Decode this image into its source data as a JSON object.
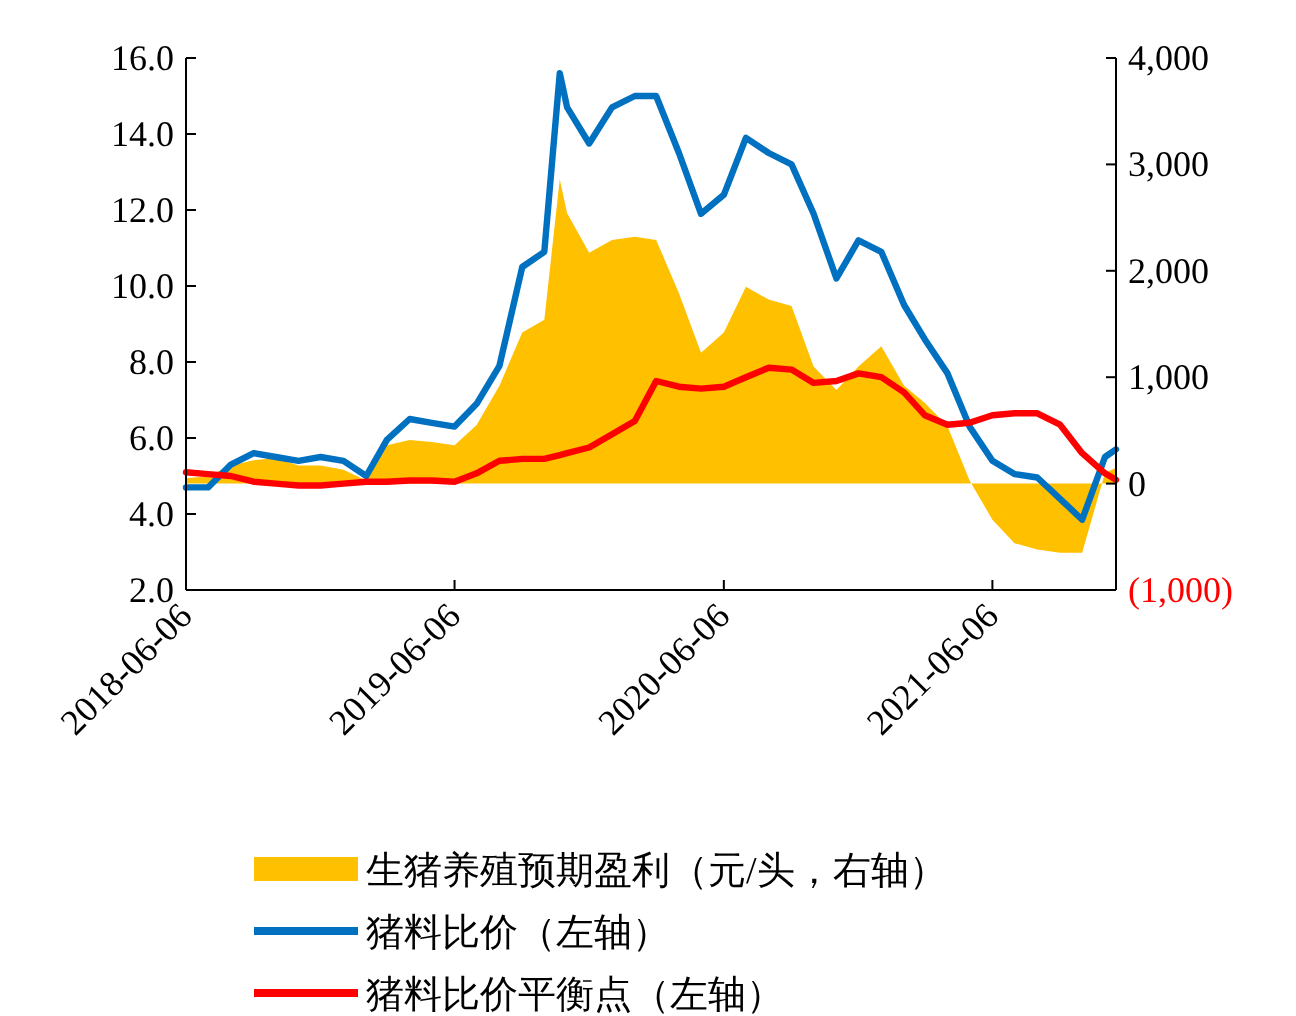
{
  "chart_data": {
    "type": "line",
    "x": [
      "2018-06-06",
      "2018-07-06",
      "2018-08-06",
      "2018-09-06",
      "2018-10-06",
      "2018-11-06",
      "2018-12-06",
      "2019-01-06",
      "2019-02-06",
      "2019-03-06",
      "2019-04-06",
      "2019-05-06",
      "2019-06-06",
      "2019-07-06",
      "2019-08-06",
      "2019-09-06",
      "2019-10-06",
      "2019-10-27",
      "2019-11-06",
      "2019-12-06",
      "2020-01-06",
      "2020-02-06",
      "2020-03-06",
      "2020-04-06",
      "2020-05-06",
      "2020-06-06",
      "2020-07-06",
      "2020-08-06",
      "2020-09-06",
      "2020-10-06",
      "2020-11-06",
      "2020-12-06",
      "2021-01-06",
      "2021-02-06",
      "2021-03-06",
      "2021-04-06",
      "2021-05-06",
      "2021-06-06",
      "2021-07-06",
      "2021-08-06",
      "2021-09-06",
      "2021-10-06",
      "2021-11-06",
      "2021-11-21"
    ],
    "xlim": [
      "2018-06-06",
      "2021-11-21"
    ],
    "xticks": [
      "2018-06-06",
      "2019-06-06",
      "2020-06-06",
      "2021-06-06"
    ],
    "ylim": [
      2,
      16
    ],
    "yticks": [
      {
        "value": 2,
        "label": "2.0"
      },
      {
        "value": 4,
        "label": "4.0"
      },
      {
        "value": 6,
        "label": "6.0"
      },
      {
        "value": 8,
        "label": "8.0"
      },
      {
        "value": 10,
        "label": "10.0"
      },
      {
        "value": 12,
        "label": "12.0"
      },
      {
        "value": 14,
        "label": "14.0"
      },
      {
        "value": 16,
        "label": "16.0"
      }
    ],
    "y2lim": [
      -1000,
      4000
    ],
    "y2ticks": [
      {
        "value": -1000,
        "label": "(1,000)"
      },
      0,
      {
        "value": 1000,
        "label": "1,000"
      },
      {
        "value": 2000,
        "label": "2,000"
      },
      {
        "value": 3000,
        "label": "3,000"
      },
      {
        "value": 4000,
        "label": "4,000"
      }
    ],
    "legend": "bottom",
    "series": [
      {
        "name": "生猪养殖预期盈利（元/头，右轴）",
        "type": "area",
        "axis": "y2",
        "color": "#ffc000",
        "values": [
          50,
          70,
          170,
          220,
          240,
          170,
          170,
          130,
          30,
          360,
          410,
          390,
          360,
          550,
          920,
          1420,
          1540,
          2860,
          2540,
          2170,
          2290,
          2320,
          2290,
          1790,
          1230,
          1420,
          1850,
          1730,
          1670,
          1100,
          880,
          1100,
          1290,
          920,
          760,
          540,
          30,
          -340,
          -560,
          -620,
          -650,
          -650,
          100,
          150
        ]
      },
      {
        "name": "猪料比价（左轴）",
        "color": "#0070c0",
        "values": [
          4.7,
          4.7,
          5.3,
          5.6,
          5.5,
          5.4,
          5.5,
          5.4,
          5.0,
          5.95,
          6.5,
          6.4,
          6.3,
          6.9,
          7.9,
          10.5,
          10.9,
          15.6,
          14.7,
          13.75,
          14.7,
          15.0,
          15.0,
          13.5,
          11.9,
          12.4,
          13.9,
          13.5,
          13.2,
          11.9,
          10.2,
          11.2,
          10.9,
          9.5,
          8.6,
          7.7,
          6.3,
          5.4,
          5.05,
          4.96,
          4.4,
          3.85,
          5.5,
          5.7
        ]
      },
      {
        "name": "猪料比价平衡点（左轴）",
        "color": "#ff0000",
        "values": [
          5.1,
          5.05,
          5.0,
          4.85,
          4.8,
          4.75,
          4.75,
          4.8,
          4.85,
          4.85,
          4.88,
          4.88,
          4.85,
          5.07,
          5.4,
          5.45,
          5.45,
          5.55,
          5.6,
          5.75,
          6.1,
          6.45,
          7.5,
          7.35,
          7.3,
          7.35,
          7.6,
          7.85,
          7.8,
          7.45,
          7.5,
          7.7,
          7.6,
          7.2,
          6.6,
          6.35,
          6.4,
          6.6,
          6.65,
          6.65,
          6.35,
          5.6,
          5.07,
          4.9
        ]
      }
    ]
  }
}
